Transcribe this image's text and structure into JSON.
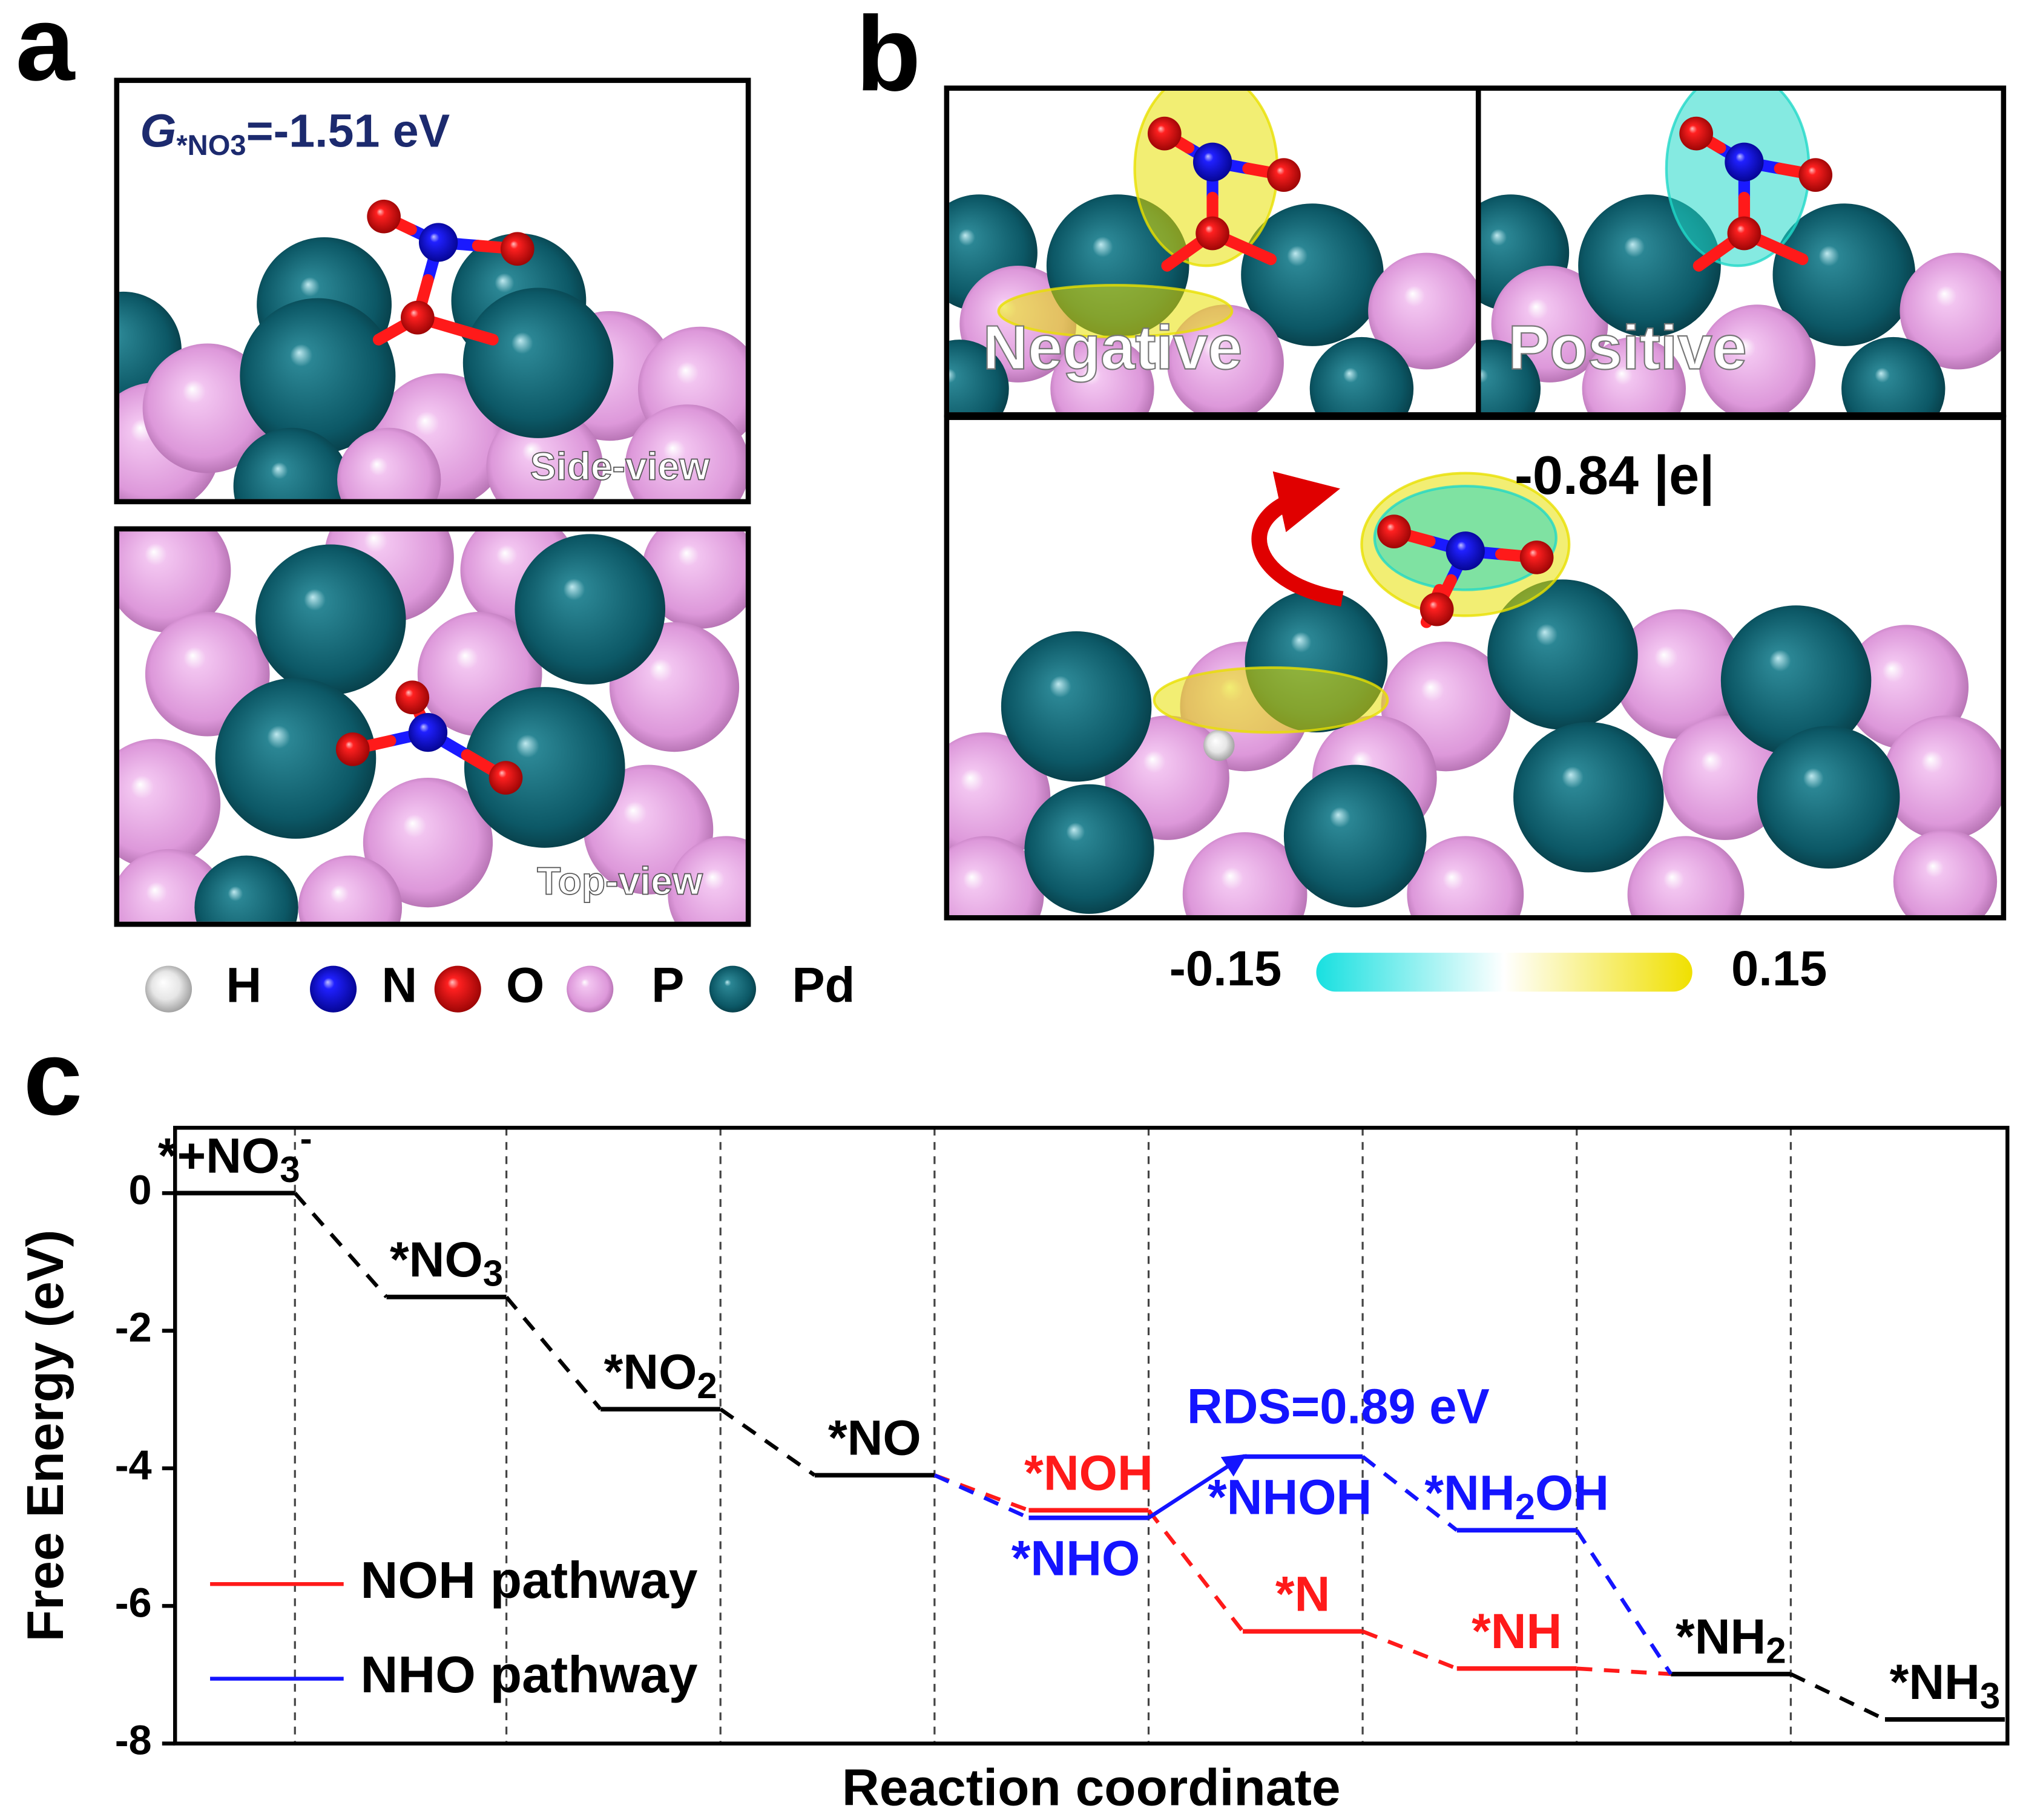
{
  "panel_a": {
    "letter": "a",
    "energy_symbol": "G",
    "energy_subscript": "*NO3",
    "energy_text": "=-1.51 eV",
    "side_view": "Side-view",
    "top_view": "Top-view",
    "atom_legend": [
      "H",
      "N",
      "O",
      "P",
      "Pd"
    ]
  },
  "panel_b": {
    "letter": "b",
    "negative": "Negative",
    "positive": "Positive",
    "charge": "-0.84 |e|",
    "colorbar": {
      "min": -0.15,
      "max": 0.15
    }
  },
  "chart_data": {
    "type": "energy_profile",
    "letter": "c",
    "xlabel": "Reaction coordinate",
    "ylabel": "Free Energy (eV)",
    "ylim": [
      -8,
      0.95
    ],
    "yticks": [
      0,
      -2,
      -4,
      -6,
      -8
    ],
    "values": [
      0,
      -1.51,
      -3.14,
      -4.1,
      null,
      null,
      null,
      -6.99,
      -7.65
    ],
    "level_labels": [
      "*+NO3-",
      "*NO3",
      "*NO2",
      "*NO",
      null,
      null,
      null,
      "*NH2",
      "*NH3"
    ],
    "color": "#000000",
    "series": [
      {
        "name": "NOH pathway",
        "color": "#ff1a1a",
        "values": [
          null,
          null,
          null,
          null,
          -4.61,
          -6.37,
          -6.91,
          null,
          null
        ],
        "level_labels": [
          null,
          null,
          null,
          null,
          "*NOH",
          "*N",
          "*NH",
          null,
          null
        ]
      },
      {
        "name": "NHO pathway",
        "color": "#1414ff",
        "values": [
          null,
          null,
          null,
          null,
          -4.72,
          -3.83,
          -4.9,
          null,
          null
        ],
        "level_labels": [
          null,
          null,
          null,
          null,
          "*NHO",
          "*NHOH",
          "*NH2OH",
          null,
          null
        ]
      }
    ],
    "annotations": [
      {
        "text": "RDS=0.89 eV"
      }
    ]
  }
}
